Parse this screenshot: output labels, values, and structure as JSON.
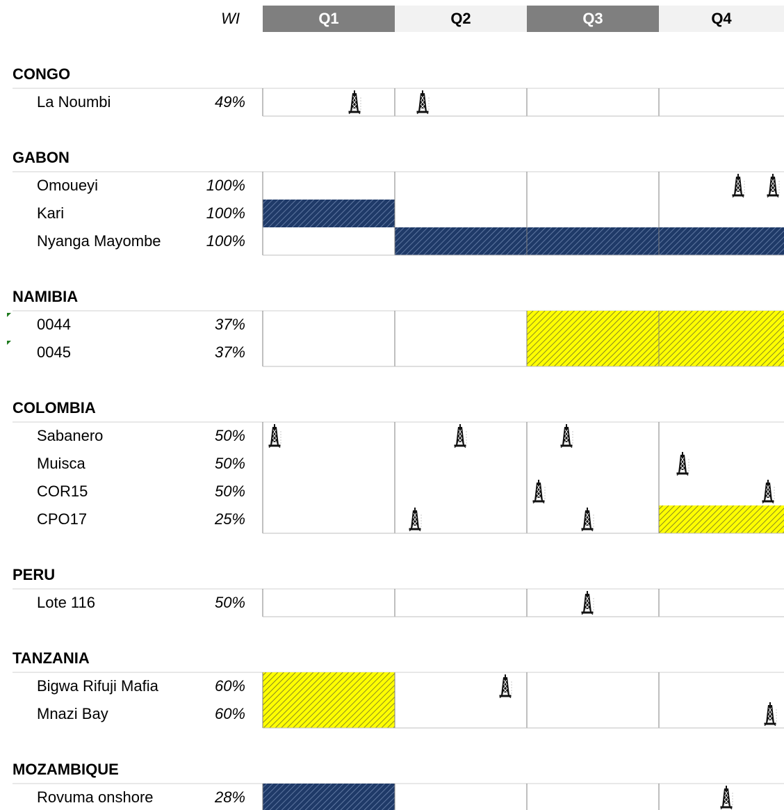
{
  "header": {
    "wi_label": "WI",
    "quarters": [
      "Q1",
      "Q2",
      "Q3",
      "Q4"
    ]
  },
  "sections": [
    {
      "title": "CONGO",
      "rows": [
        {
          "name": "La Noumbi",
          "wi": "49%"
        }
      ]
    },
    {
      "title": "GABON",
      "rows": [
        {
          "name": "Omoueyi",
          "wi": "100%"
        },
        {
          "name": "Kari",
          "wi": "100%"
        },
        {
          "name": "Nyanga Mayombe",
          "wi": "100%"
        }
      ]
    },
    {
      "title": "NAMIBIA",
      "rows": [
        {
          "name": "0044",
          "wi": "37%"
        },
        {
          "name": "0045",
          "wi": "37%"
        }
      ]
    },
    {
      "title": "COLOMBIA",
      "rows": [
        {
          "name": "Sabanero",
          "wi": "50%"
        },
        {
          "name": "Muisca",
          "wi": "50%"
        },
        {
          "name": "COR15",
          "wi": "50%"
        },
        {
          "name": "CPO17",
          "wi": "25%"
        }
      ]
    },
    {
      "title": "PERU",
      "rows": [
        {
          "name": "Lote 116",
          "wi": "50%"
        }
      ]
    },
    {
      "title": "TANZANIA",
      "rows": [
        {
          "name": "Bigwa Rifuji Mafia",
          "wi": "60%"
        },
        {
          "name": "Mnazi Bay",
          "wi": "60%"
        }
      ]
    },
    {
      "title": "MOZAMBIQUE",
      "rows": [
        {
          "name": "Rovuma onshore",
          "wi": "28%"
        }
      ]
    }
  ]
}
